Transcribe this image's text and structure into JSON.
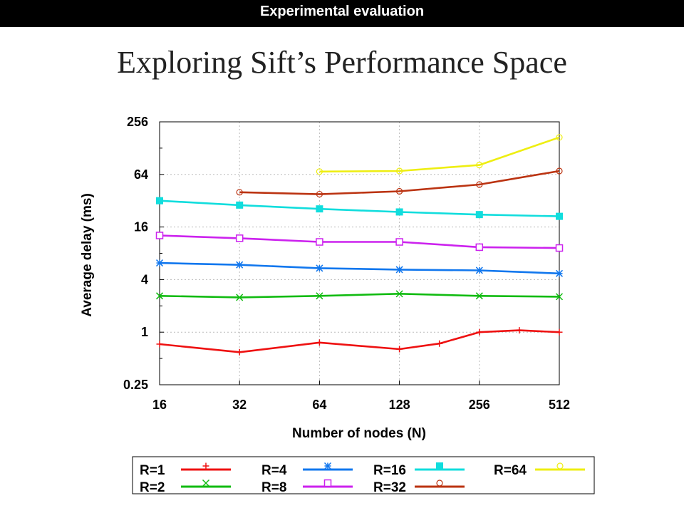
{
  "header": {
    "section_label": "Experimental evaluation"
  },
  "slide": {
    "title": "Exploring Sift’s Performance Space"
  },
  "chart_data": {
    "type": "line",
    "xlabel": "Number of nodes (N)",
    "ylabel": "Average delay (ms)",
    "x_scale": "log2",
    "y_scale": "log2",
    "xlim": [
      16,
      512
    ],
    "ylim": [
      0.25,
      256
    ],
    "x_ticks": [
      "16",
      "32",
      "64",
      "128",
      "256",
      "512"
    ],
    "y_ticks": [
      "0.25",
      "1",
      "4",
      "16",
      "64",
      "256"
    ],
    "grid": true,
    "legend_position": "bottom",
    "series": [
      {
        "name": "R=1",
        "color": "#ee1111",
        "marker": "plus",
        "x": [
          16,
          32,
          64,
          128,
          181,
          256,
          362,
          512
        ],
        "y": [
          0.73,
          0.59,
          0.76,
          0.64,
          0.74,
          1.0,
          1.05,
          1.0
        ]
      },
      {
        "name": "R=2",
        "color": "#11bb11",
        "marker": "x",
        "x": [
          16,
          32,
          64,
          128,
          256,
          512
        ],
        "y": [
          2.6,
          2.5,
          2.6,
          2.75,
          2.6,
          2.55
        ]
      },
      {
        "name": "R=4",
        "color": "#1177ee",
        "marker": "star",
        "x": [
          16,
          32,
          64,
          128,
          256,
          512
        ],
        "y": [
          6.2,
          5.9,
          5.4,
          5.2,
          5.1,
          4.7
        ]
      },
      {
        "name": "R=8",
        "color": "#cc22ee",
        "marker": "square-open",
        "x": [
          16,
          32,
          64,
          128,
          256,
          512
        ],
        "y": [
          12.8,
          11.9,
          10.8,
          10.8,
          9.4,
          9.2
        ]
      },
      {
        "name": "R=16",
        "color": "#11dddd",
        "marker": "square-filled",
        "x": [
          16,
          32,
          64,
          128,
          256,
          512
        ],
        "y": [
          32,
          28.5,
          25.8,
          23.8,
          22.2,
          21.2
        ]
      },
      {
        "name": "R=32",
        "color": "#bb3311",
        "marker": "circle-open",
        "x": [
          32,
          64,
          128,
          256,
          512
        ],
        "y": [
          40,
          38,
          41,
          49,
          70
        ]
      },
      {
        "name": "R=64",
        "color": "#eeee11",
        "marker": "circle-open",
        "x": [
          64,
          128,
          256,
          512
        ],
        "y": [
          69,
          70,
          82,
          170
        ]
      }
    ]
  }
}
